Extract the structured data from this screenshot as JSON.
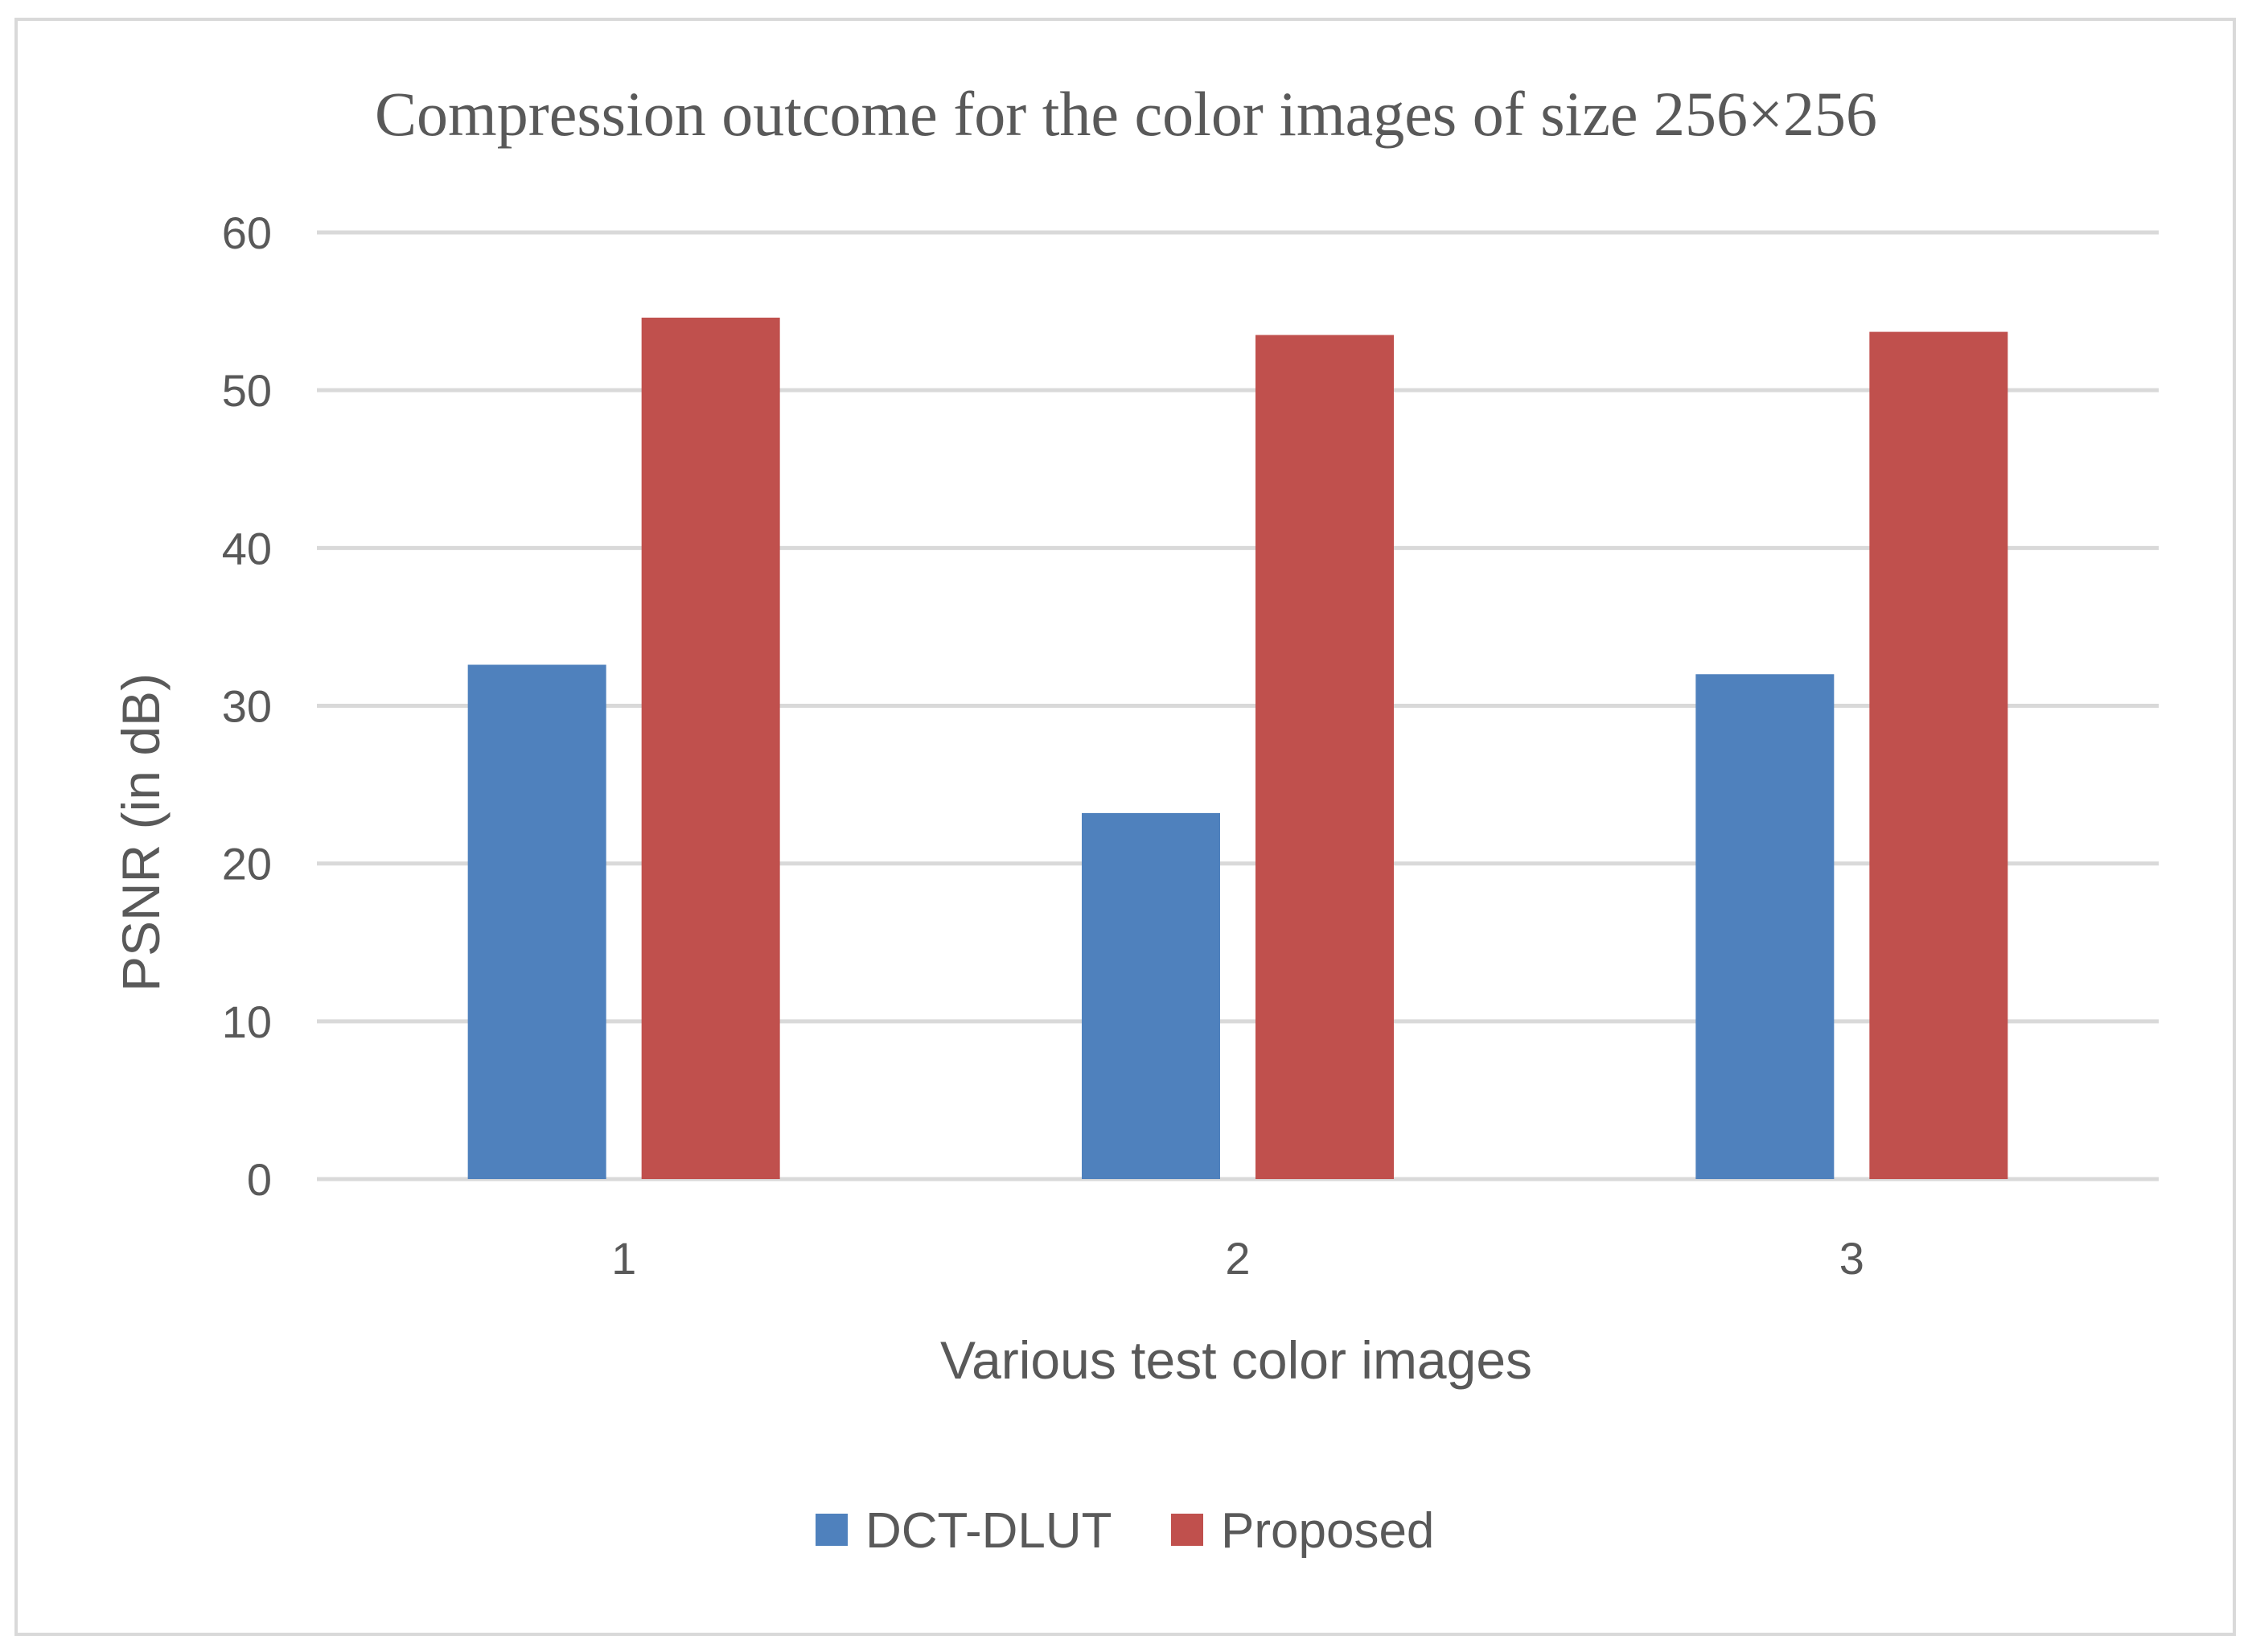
{
  "chart_data": {
    "type": "bar",
    "title": "Compression outcome for the color images of size 256×256",
    "xlabel": "Various test color images",
    "ylabel": "PSNR (in dB)",
    "categories": [
      "1",
      "2",
      "3"
    ],
    "series": [
      {
        "name": "DCT-DLUT",
        "values": [
          32.6,
          23.2,
          32.0
        ],
        "color": "#4f81bd"
      },
      {
        "name": "Proposed",
        "values": [
          54.6,
          53.5,
          53.7
        ],
        "color": "#c0504d"
      }
    ],
    "ylim": [
      0,
      60
    ],
    "yticks": [
      "0",
      "10",
      "20",
      "30",
      "40",
      "50",
      "60"
    ],
    "grid": true,
    "legend_position": "bottom"
  }
}
